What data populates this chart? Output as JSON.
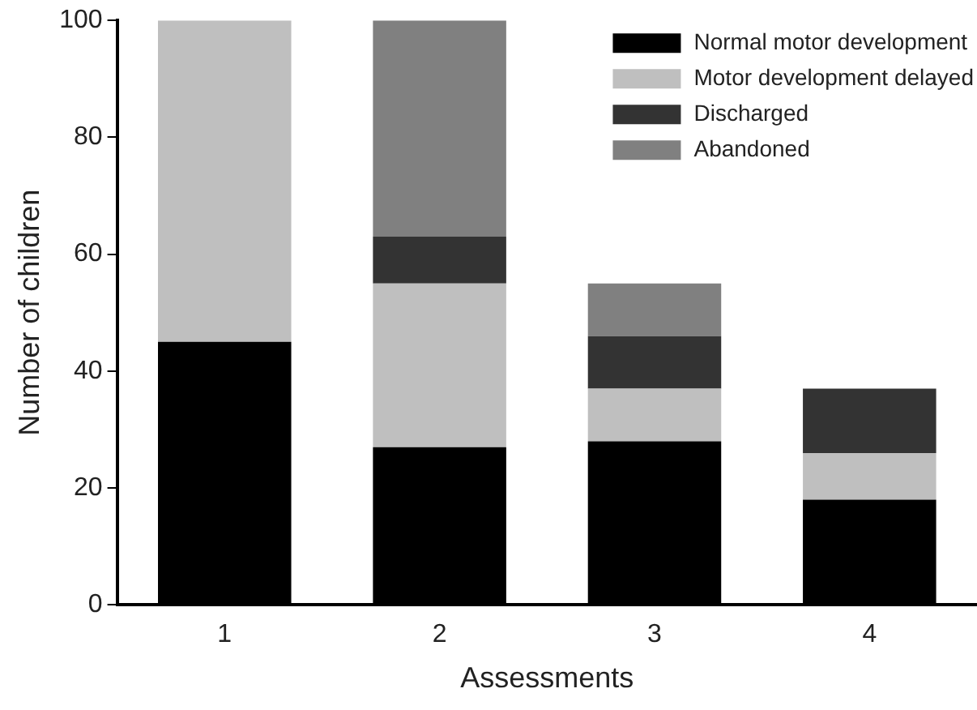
{
  "chart_data": {
    "type": "bar",
    "stacked": true,
    "xlabel": "Assessments",
    "ylabel": "Number of children",
    "categories": [
      "1",
      "2",
      "3",
      "4"
    ],
    "series": [
      {
        "name": "Normal motor development",
        "color": "#000000",
        "values": [
          45,
          27,
          28,
          18
        ]
      },
      {
        "name": "Motor development delayed",
        "color": "#bfbfbf",
        "values": [
          55,
          28,
          9,
          8
        ]
      },
      {
        "name": "Discharged",
        "color": "#333333",
        "values": [
          0,
          8,
          9,
          11
        ]
      },
      {
        "name": "Abandoned",
        "color": "#808080",
        "values": [
          0,
          37,
          9,
          0
        ]
      }
    ],
    "ylim": [
      0,
      100
    ],
    "yticks": [
      0,
      20,
      40,
      60,
      80,
      100
    ],
    "grid": false,
    "legend": "top right"
  }
}
